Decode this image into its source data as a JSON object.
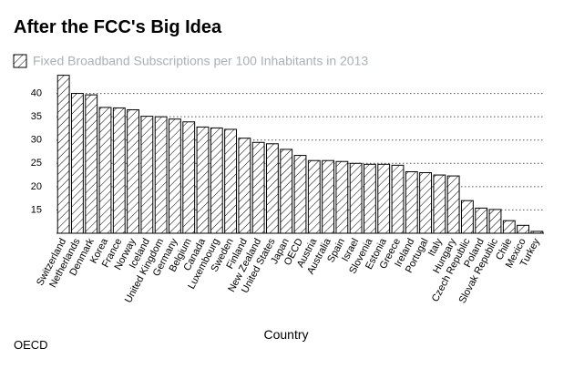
{
  "chart_data": {
    "type": "bar",
    "title": "After the FCC's Big Idea",
    "legend_label": "Fixed Broadband Subscriptions per 100 Inhabitants in 2013",
    "x_label": "Country",
    "source": "OECD",
    "color": "#000000",
    "categories": [
      "Switzerland",
      "Netherlands",
      "Denmark",
      "Korea",
      "France",
      "Norway",
      "Iceland",
      "United Kingdom",
      "Germany",
      "Belgium",
      "Canada",
      "Luxembourg",
      "Sweden",
      "Finland",
      "New Zealand",
      "United States",
      "Japan",
      "OECD",
      "Austria",
      "Australia",
      "Spain",
      "Israel",
      "Slovenia",
      "Estonia",
      "Greece",
      "Ireland",
      "Portugal",
      "Italy",
      "Hungary",
      "Czech Republic",
      "Poland",
      "Slovak Republic",
      "Chile",
      "Mexico",
      "Turkey"
    ],
    "values": [
      43.9,
      40,
      39.7,
      37,
      36.9,
      36.5,
      35.1,
      35,
      34.5,
      33.9,
      32.8,
      32.6,
      32.3,
      30.4,
      29.5,
      29.2,
      28,
      26.7,
      25.6,
      25.6,
      25.4,
      25,
      24.8,
      24.8,
      24.6,
      23.2,
      23,
      22.5,
      22.3,
      17,
      15.4,
      15.1,
      12.7,
      11.7,
      10.4
    ],
    "ylim": [
      10,
      45
    ],
    "yticks": [
      15,
      20,
      25,
      30,
      35,
      40
    ],
    "grid": true
  }
}
